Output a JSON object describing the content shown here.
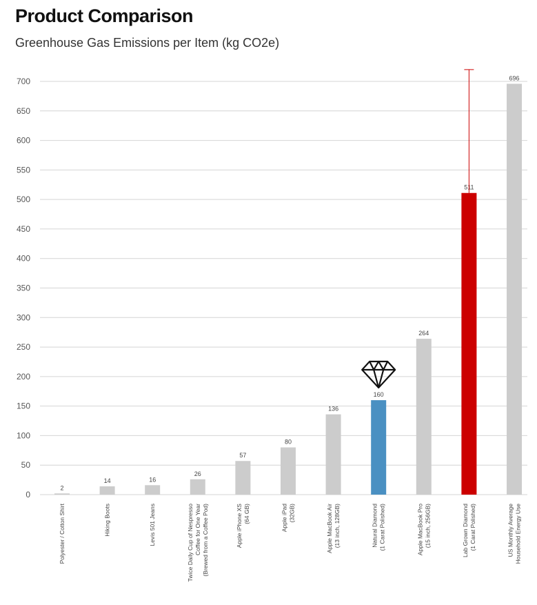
{
  "chart_data": {
    "type": "bar",
    "title": "Product Comparison",
    "subtitle": "Greenhouse Gas Emissions per Item (kg CO2e)",
    "ylim": [
      0,
      700
    ],
    "yticks": [
      0,
      50,
      100,
      150,
      200,
      250,
      300,
      350,
      400,
      450,
      500,
      550,
      600,
      650,
      700
    ],
    "grid": true,
    "categories": [
      [
        "Polyester / Cotton Shirt"
      ],
      [
        "Hiking Boots"
      ],
      [
        "Levis 501 Jeans"
      ],
      [
        "Twice Daily Cup of Nespresso",
        "Coffee for One Year",
        "(Brewed from a Coffee Pod)"
      ],
      [
        "Apple iPhone XS",
        "(64 GB)"
      ],
      [
        "Apple iPad",
        "(32GB)"
      ],
      [
        "Apple MacBook Air",
        "(13 inch, 128GB)"
      ],
      [
        "Natural Diamond",
        "(1 Carat Polished)"
      ],
      [
        "Apple MacBook Pro",
        "(15 inch, 256GB)"
      ],
      [
        "Lab Grown Diamond",
        "(1 Carat Polished)"
      ],
      [
        "US Monthly Average",
        "Household Energy Use"
      ]
    ],
    "values": [
      2,
      14,
      16,
      26,
      57,
      80,
      136,
      160,
      264,
      511,
      696
    ],
    "value_labels": [
      "2",
      "14",
      "16",
      "26",
      "57",
      "80",
      "136",
      "160",
      "264",
      "511",
      "696"
    ],
    "colors": [
      "#cccccc",
      "#cccccc",
      "#cccccc",
      "#cccccc",
      "#cccccc",
      "#cccccc",
      "#cccccc",
      "#4a90c2",
      "#cccccc",
      "#cc0000",
      "#cccccc"
    ],
    "error_bar": {
      "category_index": 9,
      "upper": 720
    },
    "icon": {
      "name": "diamond-icon",
      "category_index": 7
    }
  }
}
